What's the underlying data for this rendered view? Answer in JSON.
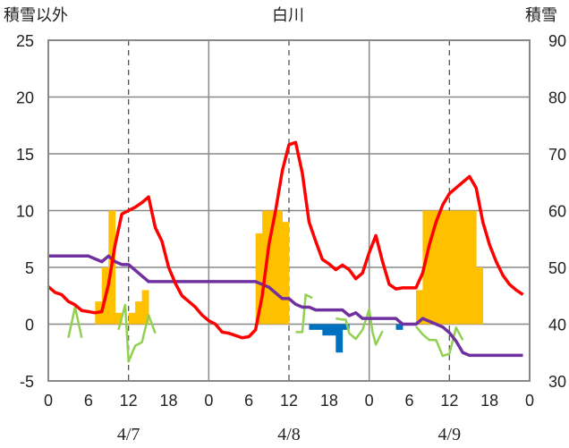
{
  "chart_data": {
    "type": "bar+line",
    "title": "白川",
    "ylabel_left": "積雪以外",
    "ylabel_right": "積雪",
    "ylim_left": [
      -5,
      25
    ],
    "ylim_right": [
      30,
      90
    ],
    "yticks_left": [
      "-5",
      "0",
      "5",
      "10",
      "15",
      "20",
      "25"
    ],
    "yticks_right": [
      "30",
      "40",
      "50",
      "60",
      "70",
      "80",
      "90"
    ],
    "x_hours_range": [
      0,
      72
    ],
    "xticks": [
      "0",
      "6",
      "12",
      "18",
      "0",
      "6",
      "12",
      "18",
      "0",
      "6",
      "12",
      "18",
      "0"
    ],
    "day_labels": [
      "4/7",
      "4/8",
      "4/9"
    ],
    "grid": {
      "vertical_solid_hours": [
        24,
        48
      ],
      "vertical_dashed_hours": [
        12,
        36,
        60
      ],
      "horizontal_at_left": [
        0,
        5,
        10,
        15,
        20
      ]
    },
    "colors": {
      "precip_bar": "#FFC000",
      "snow_change_bar": "#0070C0",
      "temperature_line": "#FF0000",
      "snowdepth_line": "#7030A0",
      "green_line": "#92D050"
    },
    "precip_bars": [
      {
        "x": 7.5,
        "y": 2
      },
      {
        "x": 8.5,
        "y": 5
      },
      {
        "x": 9.5,
        "y": 10
      },
      {
        "x": 10.5,
        "y": 1
      },
      {
        "x": 12.5,
        "y": 1
      },
      {
        "x": 13.5,
        "y": 2
      },
      {
        "x": 14.5,
        "y": 3
      },
      {
        "x": 31.5,
        "y": 8
      },
      {
        "x": 32.5,
        "y": 10
      },
      {
        "x": 33.5,
        "y": 10
      },
      {
        "x": 34.5,
        "y": 10
      },
      {
        "x": 35.5,
        "y": 9
      },
      {
        "x": 55.5,
        "y": 3
      },
      {
        "x": 56.5,
        "y": 10
      },
      {
        "x": 57.5,
        "y": 10
      },
      {
        "x": 58.5,
        "y": 10
      },
      {
        "x": 59.5,
        "y": 10
      },
      {
        "x": 60.5,
        "y": 10
      },
      {
        "x": 61.5,
        "y": 10
      },
      {
        "x": 62.5,
        "y": 10
      },
      {
        "x": 63.5,
        "y": 10
      },
      {
        "x": 64.5,
        "y": 5
      }
    ],
    "snow_change_bars": [
      {
        "x": 39.5,
        "y": -0.5
      },
      {
        "x": 40.5,
        "y": -0.5
      },
      {
        "x": 41.5,
        "y": -1
      },
      {
        "x": 42.5,
        "y": -1
      },
      {
        "x": 43.5,
        "y": -2.5
      },
      {
        "x": 44.5,
        "y": -0.5
      },
      {
        "x": 52.5,
        "y": -0.5
      }
    ],
    "temperature": [
      [
        0,
        3.3
      ],
      [
        1,
        2.8
      ],
      [
        2,
        2.6
      ],
      [
        3,
        2
      ],
      [
        4,
        1.7
      ],
      [
        5,
        1.2
      ],
      [
        6,
        1.1
      ],
      [
        7,
        1
      ],
      [
        8,
        1.1
      ],
      [
        9,
        3.5
      ],
      [
        10,
        7
      ],
      [
        11,
        9.7
      ],
      [
        12,
        10
      ],
      [
        13,
        10.3
      ],
      [
        14,
        10.7
      ],
      [
        15,
        11.2
      ],
      [
        16,
        8.5
      ],
      [
        17,
        7.3
      ],
      [
        18,
        5
      ],
      [
        19,
        3.6
      ],
      [
        20,
        2.5
      ],
      [
        21,
        2
      ],
      [
        22,
        1.5
      ],
      [
        23,
        0.8
      ],
      [
        24,
        0.3
      ],
      [
        25,
        0
      ],
      [
        26,
        -0.7
      ],
      [
        27,
        -0.8
      ],
      [
        28,
        -1
      ],
      [
        29,
        -1.2
      ],
      [
        30,
        -1.1
      ],
      [
        31,
        -0.5
      ],
      [
        32,
        2.5
      ],
      [
        33,
        7
      ],
      [
        34,
        10
      ],
      [
        35,
        13.5
      ],
      [
        36,
        15.8
      ],
      [
        37,
        16
      ],
      [
        38,
        13.3
      ],
      [
        39,
        9
      ],
      [
        40,
        7.3
      ],
      [
        41,
        5.7
      ],
      [
        42,
        5.3
      ],
      [
        43,
        4.8
      ],
      [
        44,
        5.2
      ],
      [
        45,
        4.8
      ],
      [
        46,
        4
      ],
      [
        47,
        4.5
      ],
      [
        48,
        6.3
      ],
      [
        49,
        7.8
      ],
      [
        50,
        5.5
      ],
      [
        51,
        3.5
      ],
      [
        52,
        3.1
      ],
      [
        53,
        3.2
      ],
      [
        54,
        3.2
      ],
      [
        55,
        3.2
      ],
      [
        56,
        4.5
      ],
      [
        57,
        7
      ],
      [
        58,
        9
      ],
      [
        59,
        10.5
      ],
      [
        60,
        11.5
      ],
      [
        61,
        12
      ],
      [
        62,
        12.5
      ],
      [
        63,
        13
      ],
      [
        64,
        12
      ],
      [
        65,
        9
      ],
      [
        66,
        7
      ],
      [
        67,
        5.5
      ],
      [
        68,
        4.3
      ],
      [
        69,
        3.5
      ],
      [
        70,
        3
      ],
      [
        71,
        2.6
      ]
    ],
    "snow_depth_right": [
      [
        0,
        52
      ],
      [
        1,
        52
      ],
      [
        2,
        52
      ],
      [
        3,
        52
      ],
      [
        4,
        52
      ],
      [
        5,
        52
      ],
      [
        6,
        52
      ],
      [
        7,
        51.5
      ],
      [
        8,
        51
      ],
      [
        9,
        52
      ],
      [
        10,
        51
      ],
      [
        11,
        50.5
      ],
      [
        12,
        50.5
      ],
      [
        13,
        49.5
      ],
      [
        14,
        48.5
      ],
      [
        15,
        47.5
      ],
      [
        16,
        47.5
      ],
      [
        17,
        47.5
      ],
      [
        18,
        47.5
      ],
      [
        19,
        47.5
      ],
      [
        20,
        47.5
      ],
      [
        21,
        47.5
      ],
      [
        22,
        47.5
      ],
      [
        23,
        47.5
      ],
      [
        24,
        47.5
      ],
      [
        25,
        47.5
      ],
      [
        26,
        47.5
      ],
      [
        27,
        47.5
      ],
      [
        28,
        47.5
      ],
      [
        29,
        47.5
      ],
      [
        30,
        47.5
      ],
      [
        31,
        47.5
      ],
      [
        32,
        47
      ],
      [
        33,
        46.5
      ],
      [
        34,
        45.5
      ],
      [
        35,
        44.5
      ],
      [
        36,
        44.5
      ],
      [
        37,
        43.5
      ],
      [
        38,
        43
      ],
      [
        39,
        43
      ],
      [
        40,
        42.5
      ],
      [
        41,
        42.5
      ],
      [
        42,
        42.5
      ],
      [
        43,
        42.5
      ],
      [
        44,
        42.5
      ],
      [
        45,
        41.5
      ],
      [
        46,
        42
      ],
      [
        47,
        41
      ],
      [
        48,
        41
      ],
      [
        49,
        41
      ],
      [
        50,
        41
      ],
      [
        51,
        41
      ],
      [
        52,
        41
      ],
      [
        53,
        40
      ],
      [
        54,
        40
      ],
      [
        55,
        40
      ],
      [
        56,
        41
      ],
      [
        57,
        40.5
      ],
      [
        58,
        40
      ],
      [
        59,
        39.5
      ],
      [
        60,
        38.5
      ],
      [
        61,
        37
      ],
      [
        62,
        35
      ],
      [
        63,
        34.5
      ],
      [
        64,
        34.5
      ],
      [
        65,
        34.5
      ],
      [
        66,
        34.5
      ],
      [
        67,
        34.5
      ],
      [
        68,
        34.5
      ],
      [
        69,
        34.5
      ],
      [
        70,
        34.5
      ],
      [
        71,
        34.5
      ]
    ],
    "green_line_segments": [
      [
        [
          3,
          -1.2
        ],
        [
          4,
          1.5
        ],
        [
          5,
          -1.2
        ]
      ],
      [
        [
          10.5,
          -0.5
        ],
        [
          11.5,
          1.7
        ],
        [
          12,
          -3.3
        ],
        [
          13,
          -1.9
        ],
        [
          14,
          -1.6
        ],
        [
          15,
          0.8
        ],
        [
          16,
          -0.8
        ]
      ],
      [
        [
          31,
          0.5
        ],
        [
          31.5,
          0.5
        ]
      ],
      [
        [
          37,
          -0.7
        ],
        [
          38,
          -0.7
        ],
        [
          38.5,
          2.6
        ],
        [
          39.5,
          2.3
        ]
      ],
      [
        [
          43,
          0.5
        ],
        [
          44,
          0.4
        ],
        [
          44.5,
          0.4
        ],
        [
          45,
          -0.8
        ],
        [
          46,
          -1.3
        ],
        [
          47,
          -0.5
        ],
        [
          48,
          1.3
        ],
        [
          48.5,
          -0.7
        ],
        [
          49,
          -1.8
        ],
        [
          50,
          -0.6
        ]
      ],
      [
        [
          55,
          -0.2
        ],
        [
          56,
          -0.9
        ],
        [
          57,
          -1.4
        ],
        [
          58,
          -1.4
        ],
        [
          59,
          -2.8
        ],
        [
          60,
          -2.6
        ],
        [
          61,
          -0.3
        ],
        [
          62,
          -1.4
        ]
      ]
    ]
  }
}
